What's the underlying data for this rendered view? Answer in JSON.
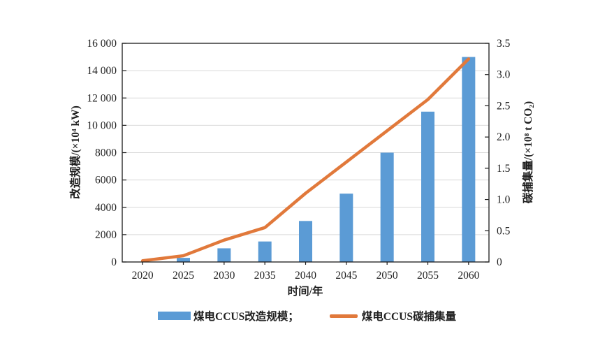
{
  "chart_data": {
    "type": "combo",
    "categories": [
      "2020",
      "2025",
      "2030",
      "2035",
      "2040",
      "2045",
      "2050",
      "2055",
      "2060"
    ],
    "series": [
      {
        "name": "煤电CCUS改造规模",
        "type": "bar",
        "axis": "left",
        "color": "#5b9bd5",
        "values": [
          0,
          300,
          1000,
          1500,
          3000,
          5000,
          8000,
          11000,
          15000
        ]
      },
      {
        "name": "煤电CCUS碳捕集量",
        "type": "line",
        "axis": "right",
        "color": "#e1793b",
        "values": [
          0.02,
          0.1,
          0.35,
          0.55,
          1.1,
          1.6,
          2.1,
          2.6,
          3.25
        ]
      }
    ],
    "left_axis": {
      "label": "改造规模/(×10⁴ kW)",
      "min": 0,
      "max": 16000,
      "step": 2000,
      "tick_labels": [
        "0",
        "2000",
        "4000",
        "6000",
        "8000",
        "10 000",
        "12 000",
        "14 000",
        "16 000"
      ]
    },
    "right_axis": {
      "label": "碳捕集量/(×10⁸ t CO₂)",
      "min": 0,
      "max": 3.5,
      "step": 0.5,
      "tick_labels": [
        "0",
        "0.5",
        "1.0",
        "1.5",
        "2.0",
        "2.5",
        "3.0",
        "3.5"
      ]
    },
    "x_axis": {
      "label": "时间/年"
    },
    "grid": true,
    "frame_color": "#1a1a1a",
    "gridline_color": "#d9d9d9",
    "legend": {
      "position": "bottom",
      "items": [
        {
          "label": "煤电CCUS改造规模；",
          "swatch": "bar"
        },
        {
          "label": "煤电CCUS碳捕集量",
          "swatch": "line"
        }
      ]
    }
  }
}
